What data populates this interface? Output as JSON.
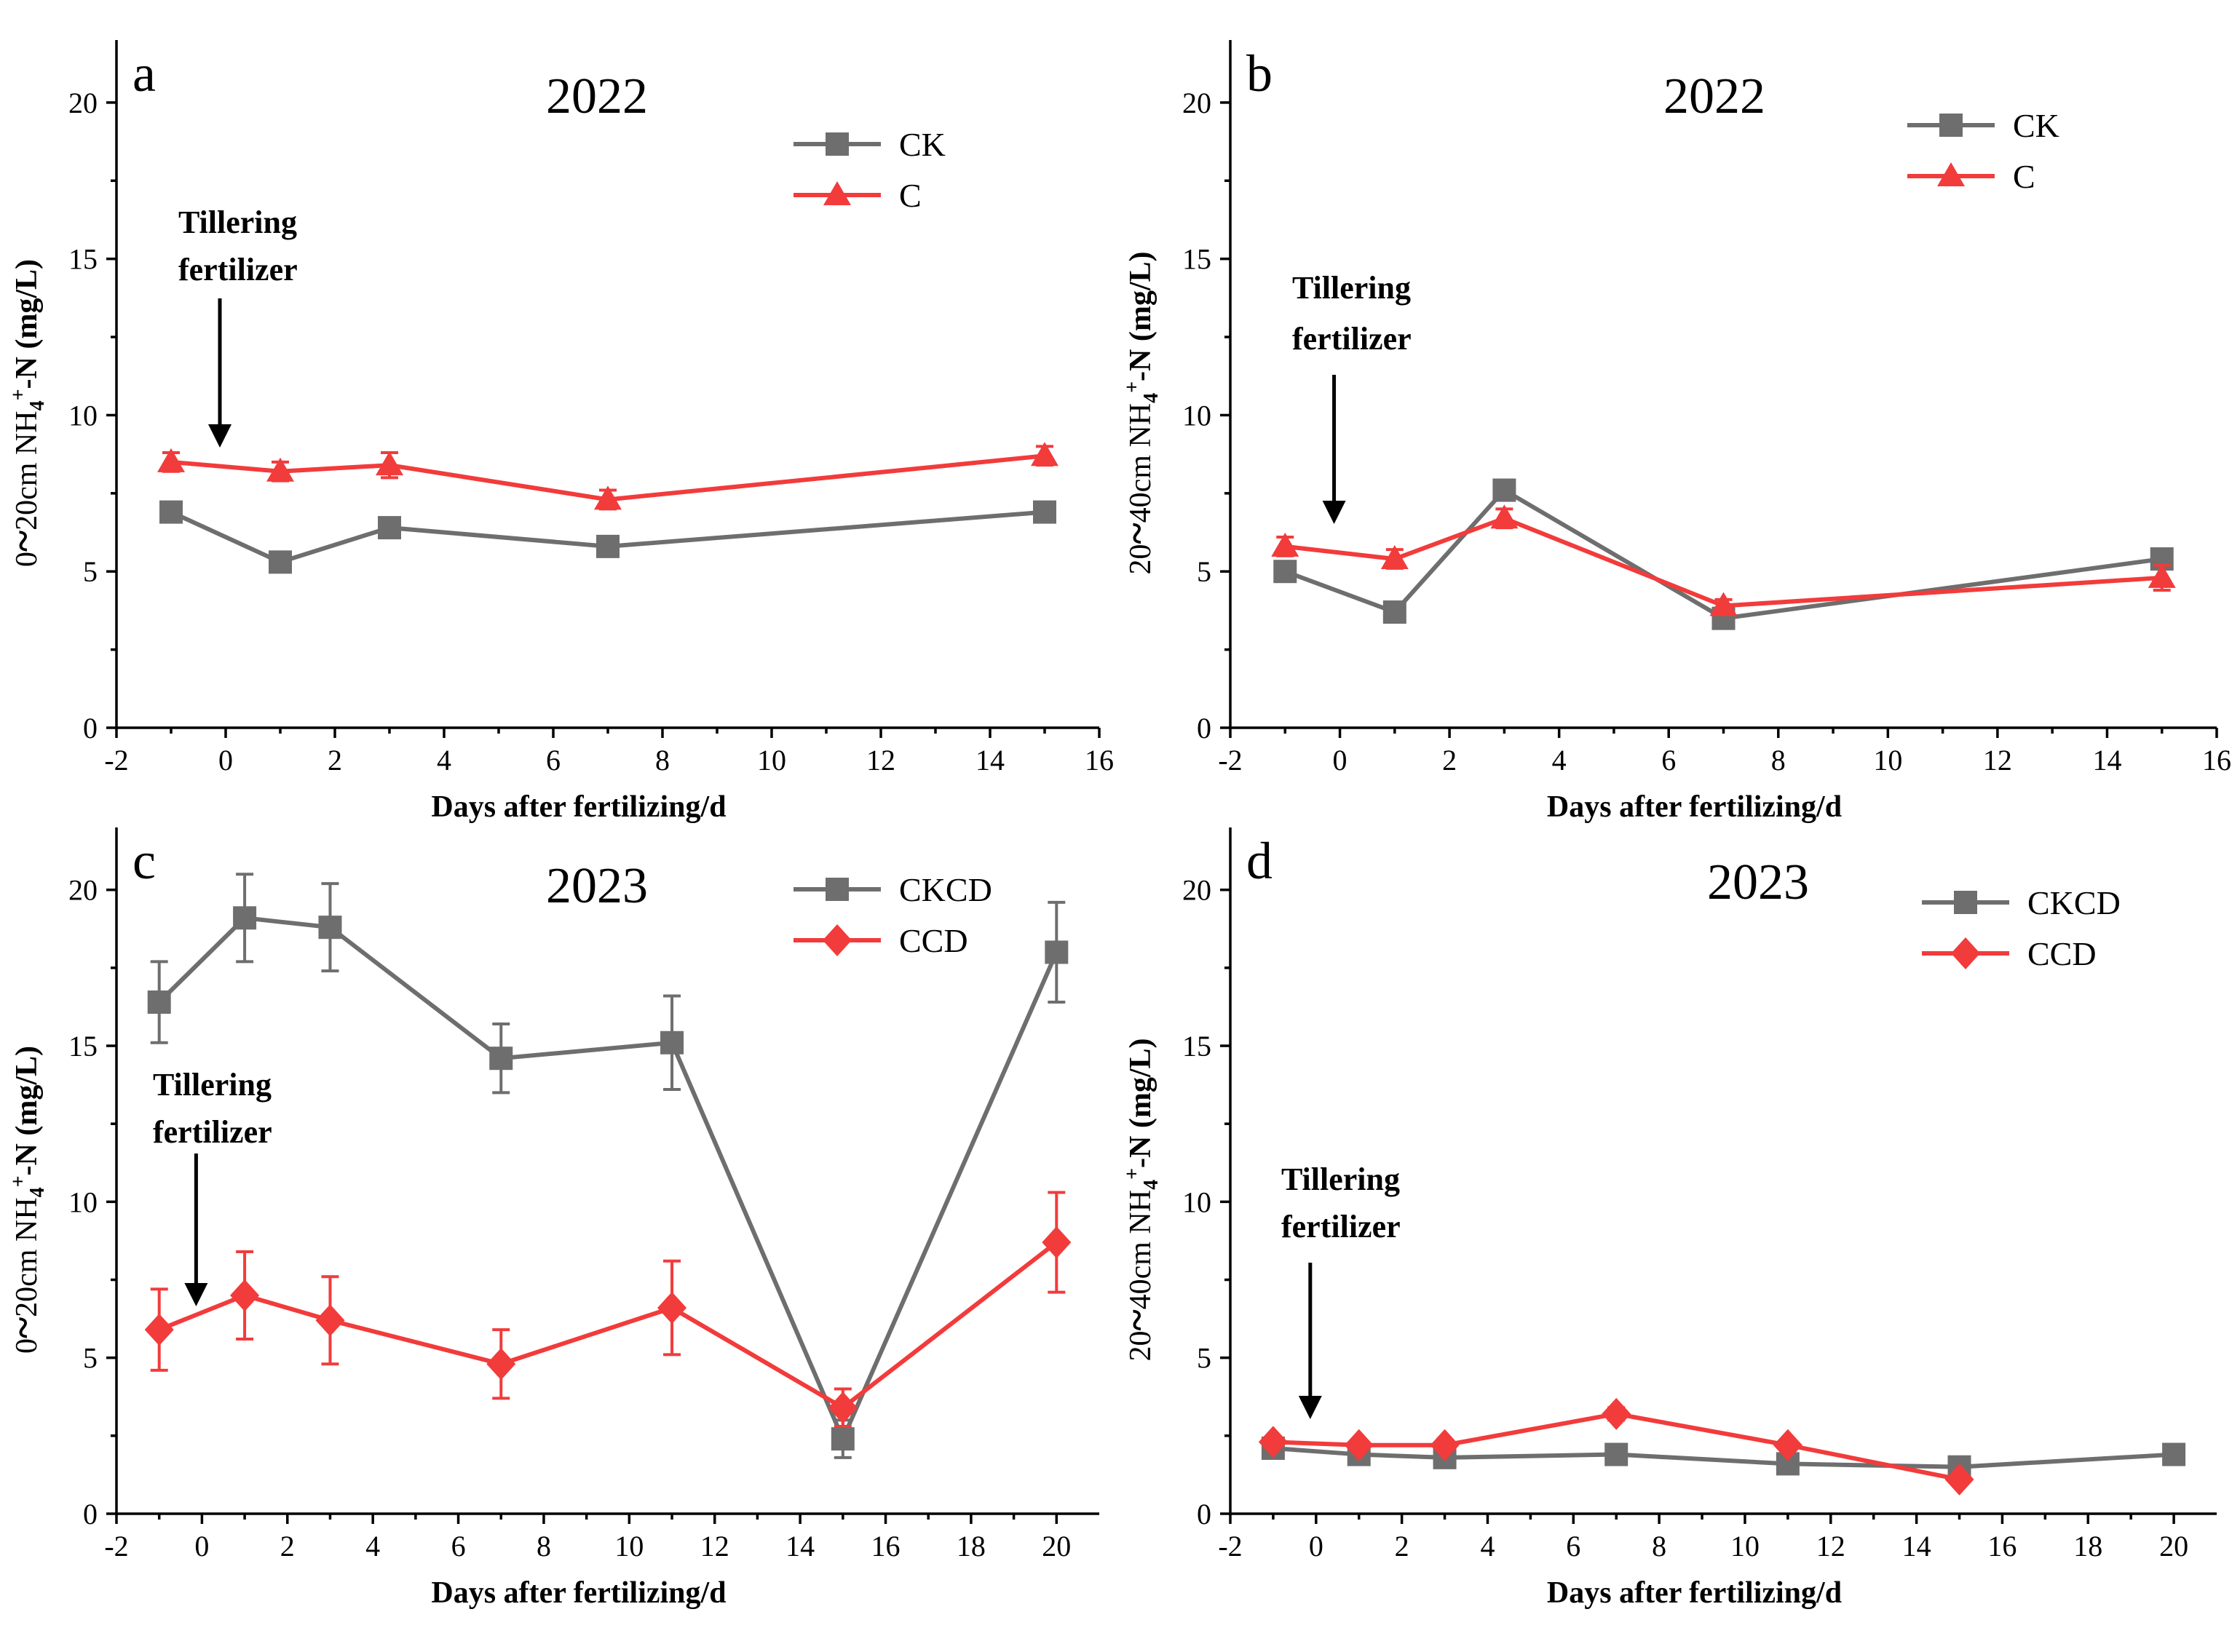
{
  "colors": {
    "gray": "#6e6e6e",
    "red": "#f23b3b",
    "black": "#000000"
  },
  "chart_data": [
    {
      "panel": "a",
      "type": "line",
      "title": "2022",
      "xlabel": "Days after fertilizing/d",
      "ylabel_pre": "0",
      "ylabel_post": "20cm NH",
      "ylabel_tail": "-N (mg/L)",
      "xlim": [
        -2,
        16
      ],
      "ylim": [
        0,
        22
      ],
      "xticks": [
        -2,
        0,
        2,
        4,
        6,
        8,
        10,
        12,
        14,
        16
      ],
      "yticks": [
        0,
        5,
        10,
        15,
        20
      ],
      "x": [
        -1,
        1,
        3,
        7,
        15
      ],
      "series": [
        {
          "name": "CK",
          "color": "#6e6e6e",
          "marker": "square",
          "values": [
            6.9,
            5.3,
            6.4,
            5.8,
            6.9
          ],
          "errors": [
            0.3,
            0.3,
            0.3,
            0.2,
            0.2
          ]
        },
        {
          "name": "C",
          "color": "#f23b3b",
          "marker": "triangle",
          "values": [
            8.5,
            8.2,
            8.4,
            7.3,
            8.7
          ],
          "errors": [
            0.3,
            0.3,
            0.4,
            0.3,
            0.3
          ]
        }
      ],
      "annotation": [
        "Tillering",
        "fertilizer"
      ]
    },
    {
      "panel": "b",
      "type": "line",
      "title": "2022",
      "xlabel": "Days after fertilizing/d",
      "ylabel_pre": "20",
      "ylabel_post": "40cm NH",
      "ylabel_tail": "-N (mg/L)",
      "xlim": [
        -2,
        16
      ],
      "ylim": [
        0,
        22
      ],
      "xticks": [
        -2,
        0,
        2,
        4,
        6,
        8,
        10,
        12,
        14,
        16
      ],
      "yticks": [
        0,
        5,
        10,
        15,
        20
      ],
      "x": [
        -1,
        1,
        3,
        7,
        15
      ],
      "series": [
        {
          "name": "CK",
          "color": "#6e6e6e",
          "marker": "square",
          "values": [
            5.0,
            3.7,
            7.6,
            3.5,
            5.4
          ],
          "errors": [
            0.2,
            0.2,
            0.2,
            0.2,
            0.2
          ]
        },
        {
          "name": "C",
          "color": "#f23b3b",
          "marker": "triangle",
          "values": [
            5.8,
            5.4,
            6.7,
            3.9,
            4.8
          ],
          "errors": [
            0.3,
            0.3,
            0.3,
            0.2,
            0.4
          ]
        }
      ],
      "annotation": [
        "Tillering",
        "fertilizer"
      ]
    },
    {
      "panel": "c",
      "type": "line",
      "title": "2023",
      "xlabel": "Days after fertilizing/d",
      "ylabel_pre": "0",
      "ylabel_post": "20cm NH",
      "ylabel_tail": "-N (mg/L)",
      "xlim": [
        -2,
        21
      ],
      "ylim": [
        0,
        22
      ],
      "xticks": [
        -2,
        0,
        2,
        4,
        6,
        8,
        10,
        12,
        14,
        16,
        18,
        20
      ],
      "yticks": [
        0,
        5,
        10,
        15,
        20
      ],
      "x": [
        -1,
        1,
        3,
        7,
        11,
        15,
        20
      ],
      "series": [
        {
          "name": "CKCD",
          "color": "#6e6e6e",
          "marker": "square",
          "values": [
            16.4,
            19.1,
            18.8,
            14.6,
            15.1,
            2.4,
            18.0
          ],
          "errors": [
            1.3,
            1.4,
            1.4,
            1.1,
            1.5,
            0.6,
            1.6
          ]
        },
        {
          "name": "CCD",
          "color": "#f23b3b",
          "marker": "diamond",
          "values": [
            5.9,
            7.0,
            6.2,
            4.8,
            6.6,
            3.4,
            8.7
          ],
          "errors": [
            1.3,
            1.4,
            1.4,
            1.1,
            1.5,
            0.6,
            1.6
          ]
        }
      ],
      "annotation": [
        "Tillering",
        "fertilizer"
      ]
    },
    {
      "panel": "d",
      "type": "line",
      "title": "2023",
      "xlabel": "Days after fertilizing/d",
      "ylabel_pre": "20",
      "ylabel_post": "40cm NH",
      "ylabel_tail": "-N (mg/L)",
      "xlim": [
        -2,
        21
      ],
      "ylim": [
        0,
        22
      ],
      "xticks": [
        -2,
        0,
        2,
        4,
        6,
        8,
        10,
        12,
        14,
        16,
        18,
        20
      ],
      "yticks": [
        0,
        5,
        10,
        15,
        20
      ],
      "x": [
        -1,
        1,
        3,
        7,
        11,
        15,
        20
      ],
      "series": [
        {
          "name": "CKCD",
          "color": "#6e6e6e",
          "marker": "square",
          "values": [
            2.1,
            1.9,
            1.8,
            1.9,
            1.6,
            1.5,
            1.9
          ],
          "errors": [
            0.1,
            0.1,
            0.1,
            0.1,
            0.1,
            0.1,
            0.1
          ]
        },
        {
          "name": "CCD",
          "color": "#f23b3b",
          "marker": "diamond",
          "values": [
            2.3,
            2.2,
            2.2,
            3.2,
            2.2,
            1.1,
            null
          ],
          "errors": [
            0.1,
            0.1,
            0.1,
            0.2,
            0.1,
            0.1,
            null
          ]
        }
      ],
      "annotation": [
        "Tillering",
        "fertilizer"
      ]
    }
  ]
}
